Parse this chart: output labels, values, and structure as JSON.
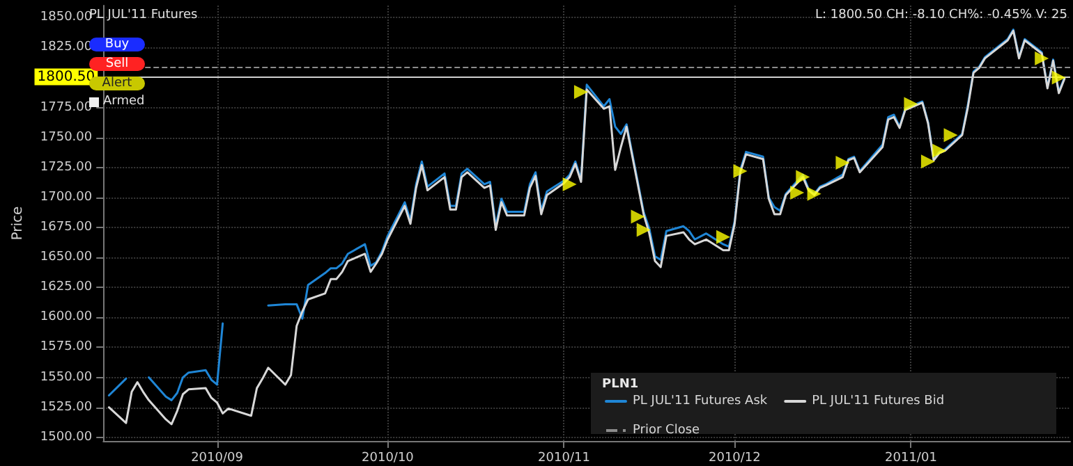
{
  "chart_data": {
    "type": "line",
    "title": "PL JUL'11 Futures",
    "ylabel": "Price",
    "legend_title": "PLN1",
    "annotations": [
      "L: 1800.50 CH: -8.10 CH%: -0.45% V: 25",
      "Buy",
      "Sell",
      "Alert",
      "Armed"
    ],
    "x": [
      "2010-08-13",
      "2010-08-16",
      "2010-08-17",
      "2010-08-18",
      "2010-08-19",
      "2010-08-20",
      "2010-08-23",
      "2010-08-24",
      "2010-08-25",
      "2010-08-26",
      "2010-08-27",
      "2010-08-30",
      "2010-08-31",
      "2010-09-01",
      "2010-09-02",
      "2010-09-03",
      "2010-09-07",
      "2010-09-08",
      "2010-09-09",
      "2010-09-10",
      "2010-09-13",
      "2010-09-14",
      "2010-09-15",
      "2010-09-16",
      "2010-09-17",
      "2010-09-20",
      "2010-09-21",
      "2010-09-22",
      "2010-09-23",
      "2010-09-24",
      "2010-09-27",
      "2010-09-28",
      "2010-09-29",
      "2010-09-30",
      "2010-10-01",
      "2010-10-04",
      "2010-10-05",
      "2010-10-06",
      "2010-10-07",
      "2010-10-08",
      "2010-10-11",
      "2010-10-12",
      "2010-10-13",
      "2010-10-14",
      "2010-10-15",
      "2010-10-18",
      "2010-10-19",
      "2010-10-20",
      "2010-10-21",
      "2010-10-22",
      "2010-10-25",
      "2010-10-26",
      "2010-10-27",
      "2010-10-28",
      "2010-10-29",
      "2010-11-01",
      "2010-11-02",
      "2010-11-03",
      "2010-11-04",
      "2010-11-05",
      "2010-11-08",
      "2010-11-09",
      "2010-11-10",
      "2010-11-11",
      "2010-11-12",
      "2010-11-15",
      "2010-11-16",
      "2010-11-17",
      "2010-11-18",
      "2010-11-19",
      "2010-11-22",
      "2010-11-23",
      "2010-11-24",
      "2010-11-26",
      "2010-11-29",
      "2010-11-30",
      "2010-12-01",
      "2010-12-02",
      "2010-12-03",
      "2010-12-06",
      "2010-12-07",
      "2010-12-08",
      "2010-12-09",
      "2010-12-10",
      "2010-12-13",
      "2010-12-14",
      "2010-12-15",
      "2010-12-16",
      "2010-12-17",
      "2010-12-20",
      "2010-12-21",
      "2010-12-22",
      "2010-12-23",
      "2010-12-27",
      "2010-12-28",
      "2010-12-29",
      "2010-12-30",
      "2010-12-31",
      "2011-01-03",
      "2011-01-04",
      "2011-01-05",
      "2011-01-06",
      "2011-01-07",
      "2011-01-10",
      "2011-01-11",
      "2011-01-12",
      "2011-01-13",
      "2011-01-14",
      "2011-01-18",
      "2011-01-19",
      "2011-01-20",
      "2011-01-21",
      "2011-01-24",
      "2011-01-25",
      "2011-01-26",
      "2011-01-27",
      "2011-01-28"
    ],
    "series": [
      {
        "name": "PL JUL'11 Futures Ask",
        "color": "#1f86d6",
        "values": [
          1535,
          1549,
          null,
          null,
          null,
          1550,
          1534,
          1531,
          1537,
          1550,
          1554,
          1556,
          1548,
          1544,
          1595,
          null,
          null,
          null,
          null,
          1610,
          1611,
          1611,
          1611,
          1599,
          1627,
          1637,
          1641,
          1641,
          1645,
          1653,
          1661,
          1643,
          1646,
          1655,
          1668,
          1696,
          1681,
          1711,
          1730,
          1709,
          1720,
          1693,
          1693,
          1720,
          1724,
          1711,
          1713,
          1676,
          1699,
          1688,
          1688,
          1711,
          1721,
          1689,
          1705,
          1714,
          1719,
          1730,
          1715,
          1794,
          1776,
          1782,
          1759,
          1753,
          1761,
          1688,
          1674,
          1651,
          1648,
          1672,
          1676,
          1672,
          1665,
          1670,
          1661,
          1659,
          1680,
          1723,
          1738,
          1734,
          1700,
          1692,
          1689,
          1703,
          1719,
          1707,
          1703,
          1709,
          1711,
          1719,
          1732,
          1734,
          1722,
          1744,
          1767,
          1769,
          1759,
          1774,
          1780,
          1763,
          1732,
          1738,
          1740,
          1753,
          1777,
          1805,
          1809,
          1817,
          1832,
          1840,
          1817,
          1832,
          1821,
          1792,
          1815,
          1788,
          1800
        ]
      },
      {
        "name": "PL JUL'11 Futures Bid",
        "color": "#d8d8d8",
        "values": [
          1525,
          1512,
          1538,
          1546,
          1538,
          1531,
          1515,
          1511,
          1522,
          1536,
          1540,
          1541,
          1533,
          1529,
          1520,
          1524,
          1518,
          1541,
          1549,
          1558,
          1544,
          1552,
          1593,
          1605,
          1615,
          1620,
          1632,
          1632,
          1638,
          1647,
          1653,
          1638,
          1645,
          1653,
          1665,
          1693,
          1678,
          1708,
          1727,
          1706,
          1717,
          1690,
          1690,
          1717,
          1721,
          1708,
          1710,
          1673,
          1696,
          1685,
          1685,
          1708,
          1718,
          1686,
          1702,
          1712,
          1717,
          1728,
          1713,
          1790,
          1774,
          1776,
          1723,
          1742,
          1759,
          1686,
          1670,
          1647,
          1642,
          1668,
          1671,
          1665,
          1661,
          1665,
          1656,
          1656,
          1678,
          1721,
          1736,
          1732,
          1699,
          1686,
          1686,
          1702,
          1717,
          1706,
          1702,
          1708,
          1710,
          1717,
          1731,
          1733,
          1721,
          1742,
          1765,
          1767,
          1758,
          1773,
          1779,
          1762,
          1731,
          1737,
          1739,
          1752,
          1775,
          1804,
          1808,
          1816,
          1831,
          1839,
          1816,
          1831,
          1820,
          1791,
          1814,
          1787,
          1799
        ]
      },
      {
        "type": "scatter",
        "marker": "triangle",
        "color": "#ffff00",
        "x": [
          "2010-11-02",
          "2010-11-04",
          "2010-11-14",
          "2010-11-15",
          "2010-11-29",
          "2010-12-02",
          "2010-12-12",
          "2010-12-13",
          "2010-12-15",
          "2010-12-20",
          "2011-01-01",
          "2011-01-04",
          "2011-01-06",
          "2011-01-08",
          "2011-01-24",
          "2011-01-27"
        ],
        "values": [
          1711,
          1788,
          1684,
          1673,
          1667,
          1722,
          1704,
          1717,
          1703,
          1729,
          1778,
          1730,
          1739,
          1752,
          1816,
          1800
        ]
      }
    ],
    "xlim": [
      "2010-08-12",
      "2011-01-29"
    ],
    "xticks": [
      {
        "value": "2010-09-01",
        "label": "2010/09"
      },
      {
        "value": "2010-10-01",
        "label": "2010/10"
      },
      {
        "value": "2010-11-01",
        "label": "2010/11"
      },
      {
        "value": "2010-12-01",
        "label": "2010/12"
      },
      {
        "value": "2011-01-01",
        "label": "2011/01"
      }
    ],
    "ylim": [
      1497,
      1860
    ],
    "yticks": [
      {
        "value": 1500,
        "label": "1500.00"
      },
      {
        "value": 1525,
        "label": "1525.00"
      },
      {
        "value": 1550,
        "label": "1550.00"
      },
      {
        "value": 1575,
        "label": "1575.00"
      },
      {
        "value": 1600,
        "label": "1600.00"
      },
      {
        "value": 1625,
        "label": "1625.00"
      },
      {
        "value": 1650,
        "label": "1650.00"
      },
      {
        "value": 1675,
        "label": "1675.00"
      },
      {
        "value": 1700,
        "label": "1700.00"
      },
      {
        "value": 1725,
        "label": "1725.00"
      },
      {
        "value": 1750,
        "label": "1750.00"
      },
      {
        "value": 1775,
        "label": "1775.00"
      },
      {
        "value": 1800,
        "label": null
      },
      {
        "value": 1825,
        "label": "1825.00"
      },
      {
        "value": 1850,
        "label": "1850.00"
      }
    ],
    "ref_lines": [
      {
        "axis": "y",
        "value": 1808.6,
        "label": "Prior Close",
        "color": "#8c8c8c",
        "line_style": "dashed"
      },
      {
        "axis": "y",
        "value": 1800.5,
        "label": "1800.50",
        "color": "#d0d0d0"
      }
    ],
    "grid": true,
    "legend": "bottom right",
    "marker": "none",
    "line_style": "solid"
  }
}
